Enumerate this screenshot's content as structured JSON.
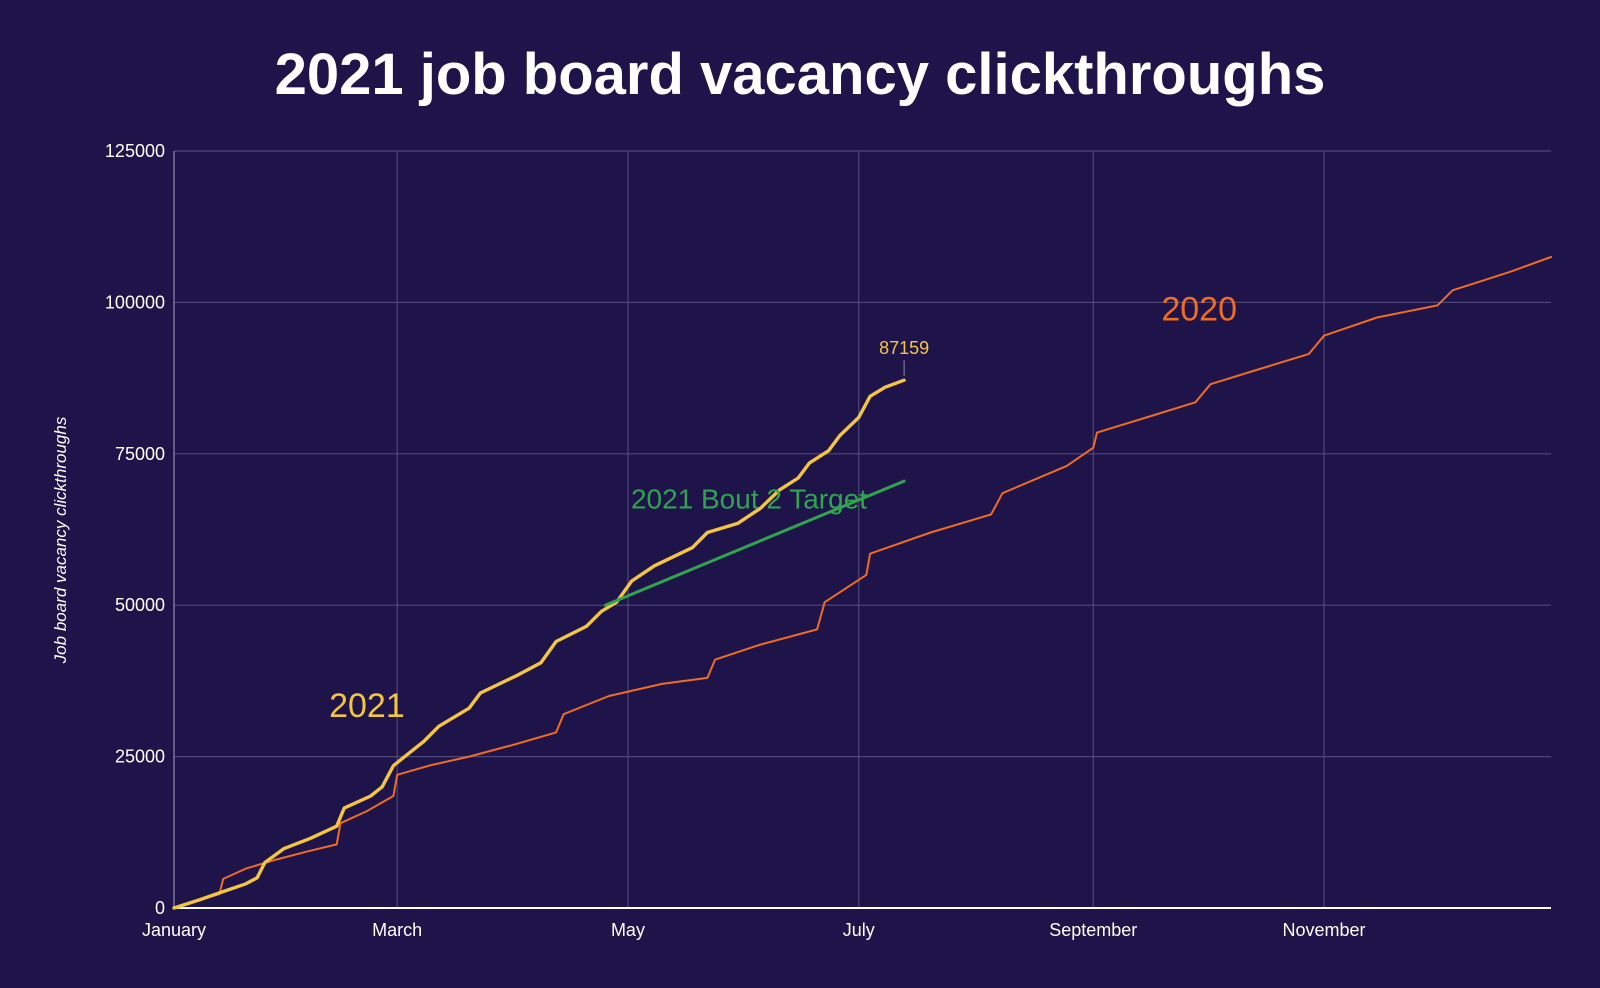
{
  "chart_data": {
    "type": "line",
    "title": "2021 job board vacancy clickthroughs",
    "xlabel": "",
    "ylabel": "Job board vacancy clickthroughs",
    "x_axis": {
      "type": "date",
      "range": [
        "2021-01-01",
        "2021-12-31"
      ],
      "tick_labels": [
        "January",
        "March",
        "May",
        "July",
        "September",
        "November"
      ],
      "tick_dates": [
        "2021-01-01",
        "2021-03-01",
        "2021-05-01",
        "2021-07-01",
        "2021-09-01",
        "2021-11-01"
      ]
    },
    "y_axis": {
      "range": [
        0,
        125000
      ],
      "ticks": [
        0,
        25000,
        50000,
        75000,
        100000,
        125000
      ],
      "tick_labels": [
        "0",
        "25000",
        "50000",
        "75000",
        "100000",
        "125000"
      ]
    },
    "grid": true,
    "legend": "none",
    "series": [
      {
        "name": "2020",
        "color": "#ef6c22",
        "points": [
          [
            "2021-01-01",
            0
          ],
          [
            "2021-01-07",
            1200
          ],
          [
            "2021-01-13",
            2300
          ],
          [
            "2021-01-14",
            4800
          ],
          [
            "2021-01-20",
            6500
          ],
          [
            "2021-01-28",
            8000
          ],
          [
            "2021-02-05",
            9300
          ],
          [
            "2021-02-13",
            10500
          ],
          [
            "2021-02-14",
            14000
          ],
          [
            "2021-02-21",
            16000
          ],
          [
            "2021-02-28",
            18500
          ],
          [
            "2021-03-01",
            22000
          ],
          [
            "2021-03-10",
            23600
          ],
          [
            "2021-03-20",
            25000
          ],
          [
            "2021-04-01",
            27000
          ],
          [
            "2021-04-12",
            29000
          ],
          [
            "2021-04-14",
            32000
          ],
          [
            "2021-04-26",
            35000
          ],
          [
            "2021-05-10",
            37000
          ],
          [
            "2021-05-22",
            38000
          ],
          [
            "2021-05-24",
            41000
          ],
          [
            "2021-06-05",
            43500
          ],
          [
            "2021-06-20",
            46000
          ],
          [
            "2021-06-22",
            50500
          ],
          [
            "2021-07-03",
            55000
          ],
          [
            "2021-07-04",
            58500
          ],
          [
            "2021-07-20",
            62000
          ],
          [
            "2021-08-05",
            65000
          ],
          [
            "2021-08-08",
            68500
          ],
          [
            "2021-08-25",
            73000
          ],
          [
            "2021-09-01",
            76000
          ],
          [
            "2021-09-02",
            78500
          ],
          [
            "2021-09-15",
            81000
          ],
          [
            "2021-09-28",
            83500
          ],
          [
            "2021-10-02",
            86500
          ],
          [
            "2021-10-15",
            89000
          ],
          [
            "2021-10-28",
            91500
          ],
          [
            "2021-11-01",
            94500
          ],
          [
            "2021-11-15",
            97500
          ],
          [
            "2021-12-01",
            99500
          ],
          [
            "2021-12-05",
            102000
          ],
          [
            "2021-12-20",
            105000
          ],
          [
            "2021-12-31",
            107500
          ]
        ]
      },
      {
        "name": "2021",
        "color": "#f4c542",
        "points": [
          [
            "2021-01-01",
            0
          ],
          [
            "2021-01-08",
            1400
          ],
          [
            "2021-01-13",
            2500
          ],
          [
            "2021-01-20",
            4000
          ],
          [
            "2021-01-23",
            5000
          ],
          [
            "2021-01-25",
            7500
          ],
          [
            "2021-01-30",
            9800
          ],
          [
            "2021-02-06",
            11500
          ],
          [
            "2021-02-13",
            13500
          ],
          [
            "2021-02-15",
            16500
          ],
          [
            "2021-02-22",
            18500
          ],
          [
            "2021-02-25",
            20000
          ],
          [
            "2021-02-28",
            23500
          ],
          [
            "2021-03-04",
            25500
          ],
          [
            "2021-03-08",
            27500
          ],
          [
            "2021-03-12",
            30000
          ],
          [
            "2021-03-20",
            33000
          ],
          [
            "2021-03-23",
            35500
          ],
          [
            "2021-04-02",
            38500
          ],
          [
            "2021-04-08",
            40500
          ],
          [
            "2021-04-12",
            44000
          ],
          [
            "2021-04-20",
            46500
          ],
          [
            "2021-04-24",
            49000
          ],
          [
            "2021-04-28",
            50500
          ],
          [
            "2021-05-02",
            54000
          ],
          [
            "2021-05-08",
            56500
          ],
          [
            "2021-05-18",
            59500
          ],
          [
            "2021-05-22",
            62000
          ],
          [
            "2021-05-30",
            63500
          ],
          [
            "2021-06-05",
            66000
          ],
          [
            "2021-06-10",
            69000
          ],
          [
            "2021-06-15",
            71000
          ],
          [
            "2021-06-18",
            73500
          ],
          [
            "2021-06-23",
            75500
          ],
          [
            "2021-06-26",
            78000
          ],
          [
            "2021-07-01",
            81000
          ],
          [
            "2021-07-04",
            84500
          ],
          [
            "2021-07-08",
            86000
          ],
          [
            "2021-07-13",
            87159
          ]
        ]
      },
      {
        "name": "2021 Bout 2 Target",
        "color": "#2fa44f",
        "points": [
          [
            "2021-04-25",
            50000
          ],
          [
            "2021-07-13",
            70500
          ]
        ]
      }
    ],
    "annotations": [
      {
        "text": "2021",
        "color": "#f4c542",
        "at": [
          "2021-02-21",
          31500
        ]
      },
      {
        "text": "2020",
        "color": "#ef6c22",
        "at": [
          "2021-09-29",
          97000
        ]
      },
      {
        "text": "2021 Bout 2 Target",
        "color": "#2fa44f",
        "at": [
          "2021-06-02",
          66000
        ]
      },
      {
        "text": "87159",
        "color": "#f4c542",
        "at": [
          "2021-07-13",
          91500
        ]
      }
    ]
  }
}
